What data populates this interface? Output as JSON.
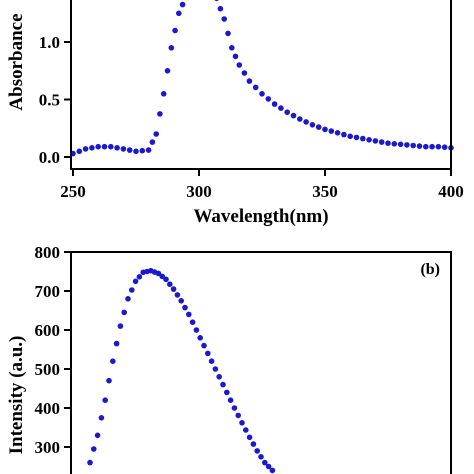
{
  "chart_data": [
    {
      "type": "scatter",
      "panel_label": "",
      "xlabel": "Wavelength(nm)",
      "ylabel": "Absorbance",
      "xlim": [
        250,
        400
      ],
      "ylim": [
        -0.05,
        1.45
      ],
      "x_ticks": [
        "250",
        "300",
        "350",
        "400"
      ],
      "y_ticks": [
        "0.0",
        "0.5",
        "1.0"
      ],
      "series": [
        {
          "color": "#1a1acc",
          "x": [
            250,
            255,
            260,
            265,
            270,
            275,
            280,
            283,
            286,
            289,
            292,
            295,
            298,
            301,
            304,
            307,
            310,
            313,
            316,
            320,
            325,
            330,
            335,
            340,
            345,
            350,
            355,
            360,
            365,
            370,
            375,
            380,
            385,
            390,
            395,
            400
          ],
          "y": [
            0.03,
            0.07,
            0.09,
            0.09,
            0.07,
            0.05,
            0.06,
            0.2,
            0.55,
            0.95,
            1.25,
            1.4,
            1.45,
            1.45,
            1.44,
            1.38,
            1.2,
            0.95,
            0.8,
            0.66,
            0.55,
            0.46,
            0.39,
            0.33,
            0.28,
            0.24,
            0.21,
            0.18,
            0.16,
            0.14,
            0.12,
            0.11,
            0.1,
            0.09,
            0.09,
            0.08
          ]
        }
      ]
    },
    {
      "type": "scatter",
      "panel_label": "(b)",
      "xlabel": "",
      "ylabel": "Intensity (a.u.)",
      "ylim": [
        240,
        800
      ],
      "y_ticks": [
        "300",
        "400",
        "500",
        "600",
        "700",
        "800"
      ],
      "series": [
        {
          "color": "#1a1acc",
          "x": [
            0.05,
            0.07,
            0.09,
            0.11,
            0.13,
            0.15,
            0.17,
            0.19,
            0.21,
            0.23,
            0.25,
            0.27,
            0.29,
            0.31,
            0.33,
            0.35,
            0.37,
            0.39,
            0.41,
            0.43,
            0.45,
            0.47,
            0.49,
            0.51,
            0.53
          ],
          "y": [
            260,
            330,
            420,
            520,
            610,
            680,
            725,
            748,
            752,
            745,
            730,
            705,
            675,
            640,
            600,
            560,
            520,
            480,
            440,
            400,
            362,
            325,
            290,
            260,
            240
          ]
        }
      ]
    }
  ]
}
